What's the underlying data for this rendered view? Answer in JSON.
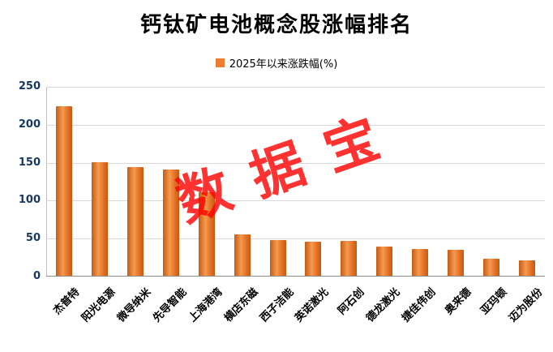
{
  "page": {
    "title": "钙钛矿电池概念股涨幅排名"
  },
  "legend": {
    "label": "2025年以来涨跌幅(%)"
  },
  "watermark": "数据宝",
  "colors": {
    "bar_center": "#F59B51",
    "bar_main": "#ED7D31",
    "bar_edge": "#C55A11",
    "watermark": "#FF0000",
    "grid": "#D9D9D9",
    "y_label": "#17375E",
    "x_label": "#000000"
  },
  "chart_data": {
    "type": "bar",
    "title": "钙钛矿电池概念股涨幅排名",
    "legend_entries": [
      "2025年以来涨跌幅(%)"
    ],
    "legend_position": "top",
    "grid": true,
    "xlabel": "",
    "ylabel": "",
    "ylim": [
      0,
      250
    ],
    "ytick_step": 50,
    "yticks": [
      0,
      50,
      100,
      150,
      200,
      250
    ],
    "categories": [
      "杰普特",
      "阳光电源",
      "微导纳米",
      "先导智能",
      "上海港湾",
      "横店东磁",
      "西子洁能",
      "英诺激光",
      "阿石创",
      "德龙激光",
      "捷佳伟创",
      "奥来德",
      "亚玛顿",
      "迈为股份"
    ],
    "values": [
      223,
      150,
      143,
      140,
      110,
      55,
      47,
      45,
      46,
      38,
      35,
      34,
      22,
      20
    ]
  }
}
